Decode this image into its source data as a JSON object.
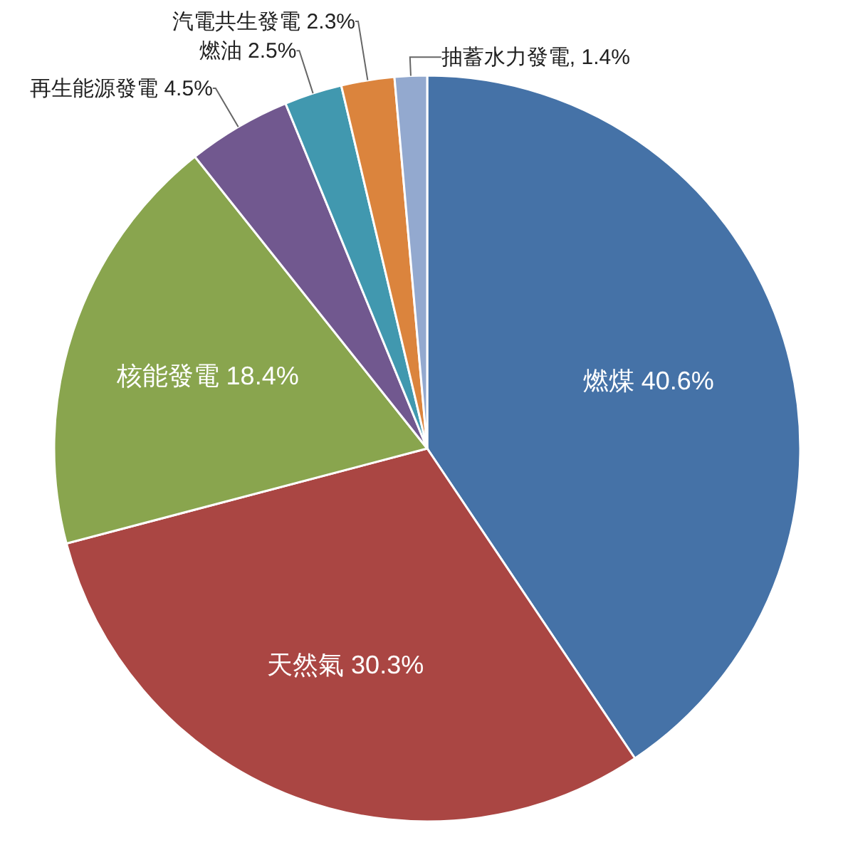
{
  "chart_data": {
    "type": "pie",
    "categories": [
      "燃煤",
      "天然氣",
      "核能發電",
      "再生能源發電",
      "燃油",
      "汽電共生發電",
      "抽蓄水力發電"
    ],
    "values": [
      40.6,
      30.3,
      18.4,
      4.5,
      2.5,
      2.3,
      1.4
    ],
    "colors": [
      "#4572a7",
      "#aa4643",
      "#89a54e",
      "#71588f",
      "#4198af",
      "#db843d",
      "#93a9cf"
    ],
    "value_labels": [
      "40.6%",
      "30.3%",
      "18.4%",
      "4.5%",
      "2.5%",
      "2.3%",
      "1.4%"
    ]
  }
}
